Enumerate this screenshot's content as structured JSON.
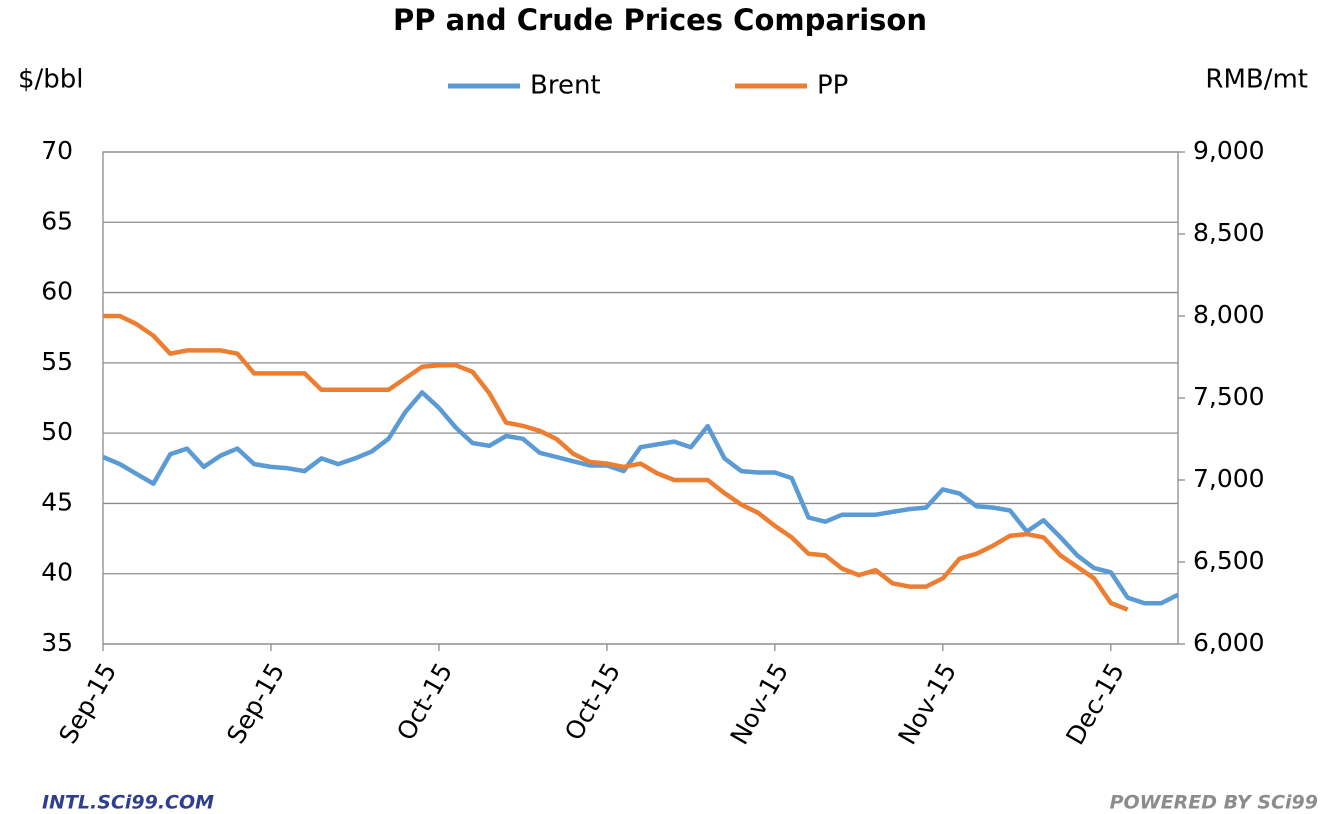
{
  "chart_data": {
    "type": "line",
    "title": "PP and Crude Prices Comparison",
    "ylabel": "$/bbl",
    "y2label": "RMB/mt",
    "footer_left": "INTL.SCi99.COM",
    "footer_right": "POWERED BY SCi99",
    "categories": [
      "Sep-15",
      null,
      null,
      null,
      null,
      null,
      null,
      null,
      null,
      null,
      "Sep-15",
      null,
      null,
      null,
      null,
      null,
      null,
      null,
      null,
      null,
      "Oct-15",
      null,
      null,
      null,
      null,
      null,
      null,
      null,
      null,
      null,
      "Oct-15",
      null,
      null,
      null,
      null,
      null,
      null,
      null,
      null,
      null,
      "Nov-15",
      null,
      null,
      null,
      null,
      null,
      null,
      null,
      null,
      null,
      "Nov-15",
      null,
      null,
      null,
      null,
      null,
      null,
      null,
      null,
      null,
      "Dec-15",
      null,
      null,
      null,
      null
    ],
    "series": [
      {
        "name": "Brent",
        "color": "#5b9bd5",
        "axis": "y",
        "values": [
          48.3,
          47.8,
          47.1,
          46.4,
          48.5,
          48.9,
          47.6,
          48.4,
          48.9,
          47.8,
          47.6,
          47.5,
          47.3,
          48.2,
          47.8,
          48.2,
          48.7,
          49.6,
          51.5,
          52.9,
          51.8,
          50.4,
          49.3,
          49.1,
          49.8,
          49.6,
          48.6,
          48.3,
          48.0,
          47.7,
          47.7,
          47.3,
          49.0,
          49.2,
          49.4,
          49.0,
          50.5,
          48.2,
          47.3,
          47.2,
          47.2,
          46.8,
          44.0,
          43.7,
          44.2,
          44.2,
          44.2,
          44.4,
          44.6,
          44.7,
          46.0,
          45.7,
          44.8,
          44.7,
          44.5,
          43.0,
          43.8,
          42.6,
          41.3,
          40.4,
          40.1,
          38.3,
          37.9,
          37.9,
          38.5
        ]
      },
      {
        "name": "PP",
        "color": "#ed7d31",
        "axis": "y2",
        "values": [
          8000,
          8000,
          7950,
          7880,
          7770,
          7790,
          7790,
          7790,
          7770,
          7650,
          7650,
          7650,
          7650,
          7550,
          7550,
          7550,
          7550,
          7550,
          7620,
          7690,
          7700,
          7700,
          7660,
          7530,
          7350,
          7330,
          7300,
          7250,
          7160,
          7110,
          7100,
          7080,
          7100,
          7040,
          7000,
          7000,
          7000,
          6920,
          6850,
          6800,
          6720,
          6650,
          6550,
          6540,
          6460,
          6420,
          6450,
          6370,
          6350,
          6350,
          6400,
          6520,
          6550,
          6600,
          6660,
          6670,
          6650,
          6540,
          6470,
          6400,
          6250,
          6210,
          null,
          null,
          null
        ]
      }
    ],
    "ylim": [
      35,
      70
    ],
    "yticks": [
      35,
      40,
      45,
      50,
      55,
      60,
      65,
      70
    ],
    "y2lim": [
      6000,
      9000
    ],
    "y2ticks": [
      {
        "value": 6000,
        "label": "6,000"
      },
      {
        "value": 6500,
        "label": "6,500"
      },
      {
        "value": 7000,
        "label": "7,000"
      },
      {
        "value": 7500,
        "label": "7,500"
      },
      {
        "value": 8000,
        "label": "8,000"
      },
      {
        "value": 8500,
        "label": "8,500"
      },
      {
        "value": 9000,
        "label": "9,000"
      }
    ],
    "grid": true,
    "legend": "top"
  }
}
